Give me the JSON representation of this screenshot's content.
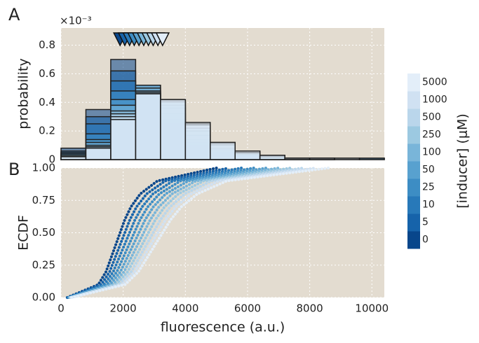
{
  "panel_labels": [
    "A",
    "B"
  ],
  "chart_data": [
    {
      "type": "histogram",
      "ylabel": "probability",
      "offset_text": "×10⁻³",
      "legend_title": "[inducer] (μM)",
      "bins": [
        0,
        800,
        1600,
        2400,
        3200,
        4000,
        4800,
        5600,
        6400,
        7200,
        8000,
        8800,
        9600,
        10400
      ],
      "xlim": [
        0,
        10400
      ],
      "xticks": [
        0,
        2000,
        4000,
        6000,
        8000,
        10000
      ],
      "ylim": [
        0,
        0.92
      ],
      "yticks": [
        0,
        0.2,
        0.4,
        0.6,
        0.8
      ],
      "grid": true,
      "medians": [
        1900,
        2052,
        2204,
        2356,
        2508,
        2660,
        2812,
        2964,
        3116,
        3268
      ],
      "series": [
        {
          "name": "0",
          "color": "#08468b",
          "values": [
            0.08,
            0.35,
            0.7,
            0.4,
            0.2,
            0.08,
            0.03,
            0.01,
            0.01,
            0,
            0,
            0,
            0.01
          ]
        },
        {
          "name": "5",
          "color": "#1663aa",
          "values": [
            0.06,
            0.3,
            0.62,
            0.45,
            0.25,
            0.1,
            0.04,
            0.02,
            0.01,
            0.01,
            0,
            0,
            0
          ]
        },
        {
          "name": "10",
          "color": "#2879b9",
          "values": [
            0.05,
            0.25,
            0.55,
            0.48,
            0.28,
            0.12,
            0.05,
            0.02,
            0.01,
            0,
            0.01,
            0,
            0
          ]
        },
        {
          "name": "25",
          "color": "#3d8dc4",
          "values": [
            0.04,
            0.18,
            0.48,
            0.52,
            0.32,
            0.14,
            0.06,
            0.03,
            0.01,
            0.01,
            0,
            0,
            0
          ]
        },
        {
          "name": "50",
          "color": "#58a1cf",
          "values": [
            0.04,
            0.14,
            0.42,
            0.52,
            0.36,
            0.17,
            0.07,
            0.03,
            0.02,
            0.01,
            0,
            0,
            0.01
          ]
        },
        {
          "name": "100",
          "color": "#79b5d9",
          "values": [
            0.03,
            0.12,
            0.38,
            0.5,
            0.38,
            0.2,
            0.08,
            0.04,
            0.02,
            0.01,
            0.01,
            0,
            0
          ]
        },
        {
          "name": "250",
          "color": "#9cc9e1",
          "values": [
            0.03,
            0.1,
            0.34,
            0.48,
            0.4,
            0.22,
            0.1,
            0.04,
            0.02,
            0.01,
            0.01,
            0,
            0
          ]
        },
        {
          "name": "500",
          "color": "#bad6eb",
          "values": [
            0.02,
            0.09,
            0.32,
            0.47,
            0.41,
            0.24,
            0.11,
            0.05,
            0.02,
            0.01,
            0.01,
            0.01,
            0
          ]
        },
        {
          "name": "1000",
          "color": "#d0e1f2",
          "values": [
            0.02,
            0.08,
            0.3,
            0.46,
            0.42,
            0.25,
            0.12,
            0.05,
            0.03,
            0.01,
            0.01,
            0,
            0
          ]
        },
        {
          "name": "5000",
          "color": "#e3eef9",
          "values": [
            0.02,
            0.08,
            0.28,
            0.46,
            0.42,
            0.26,
            0.12,
            0.06,
            0.03,
            0.01,
            0.01,
            0.01,
            0
          ]
        }
      ]
    },
    {
      "type": "line",
      "ylabel": "ECDF",
      "xlabel": "fluorescence (a.u.)",
      "xlim": [
        0,
        10400
      ],
      "xticks": [
        0,
        2000,
        4000,
        6000,
        8000,
        10000
      ],
      "ylim": [
        0,
        1
      ],
      "yticks": [
        {
          "value": 0,
          "label": "0.00"
        },
        {
          "value": 0.25,
          "label": "0.25"
        },
        {
          "value": 0.5,
          "label": "0.50"
        },
        {
          "value": 0.75,
          "label": "0.75"
        },
        {
          "value": 1,
          "label": "1.00"
        }
      ],
      "grid": true,
      "series": [
        {
          "name": "0",
          "color": "#08468b",
          "x": [
            200,
            1200,
            1450,
            1600,
            1750,
            1900,
            2050,
            2250,
            2550,
            3100,
            5000
          ],
          "values": [
            0,
            0.1,
            0.2,
            0.3,
            0.4,
            0.5,
            0.6,
            0.7,
            0.8,
            0.9,
            1
          ]
        },
        {
          "name": "5",
          "color": "#1663aa",
          "x": [
            216,
            1296,
            1566,
            1728,
            1890,
            2052,
            2214,
            2430,
            2754,
            3348,
            5400
          ],
          "values": [
            0,
            0.1,
            0.2,
            0.3,
            0.4,
            0.5,
            0.6,
            0.7,
            0.8,
            0.9,
            1
          ]
        },
        {
          "name": "10",
          "color": "#2879b9",
          "x": [
            232,
            1392,
            1682,
            1856,
            2030,
            2204,
            2378,
            2610,
            2958,
            3596,
            5800
          ],
          "values": [
            0,
            0.1,
            0.2,
            0.3,
            0.4,
            0.5,
            0.6,
            0.7,
            0.8,
            0.9,
            1
          ]
        },
        {
          "name": "25",
          "color": "#3d8dc4",
          "x": [
            248,
            1488,
            1798,
            1984,
            2170,
            2356,
            2542,
            2790,
            3162,
            3844,
            6200
          ],
          "values": [
            0,
            0.1,
            0.2,
            0.3,
            0.4,
            0.5,
            0.6,
            0.7,
            0.8,
            0.9,
            1
          ]
        },
        {
          "name": "50",
          "color": "#58a1cf",
          "x": [
            264,
            1584,
            1914,
            2112,
            2310,
            2508,
            2706,
            2970,
            3366,
            4092,
            6600
          ],
          "values": [
            0,
            0.1,
            0.2,
            0.3,
            0.4,
            0.5,
            0.6,
            0.7,
            0.8,
            0.9,
            1
          ]
        },
        {
          "name": "100",
          "color": "#79b5d9",
          "x": [
            280,
            1680,
            2030,
            2240,
            2450,
            2660,
            2870,
            3150,
            3570,
            4340,
            7000
          ],
          "values": [
            0,
            0.1,
            0.2,
            0.3,
            0.4,
            0.5,
            0.6,
            0.7,
            0.8,
            0.9,
            1
          ]
        },
        {
          "name": "250",
          "color": "#9cc9e1",
          "x": [
            296,
            1776,
            2146,
            2368,
            2590,
            2812,
            3034,
            3330,
            3774,
            4588,
            7400
          ],
          "values": [
            0,
            0.1,
            0.2,
            0.3,
            0.4,
            0.5,
            0.6,
            0.7,
            0.8,
            0.9,
            1
          ]
        },
        {
          "name": "500",
          "color": "#bad6eb",
          "x": [
            312,
            1872,
            2262,
            2496,
            2730,
            2964,
            3198,
            3510,
            3978,
            4836,
            7800
          ],
          "values": [
            0,
            0.1,
            0.2,
            0.3,
            0.4,
            0.5,
            0.6,
            0.7,
            0.8,
            0.9,
            1
          ]
        },
        {
          "name": "1000",
          "color": "#d0e1f2",
          "x": [
            328,
            1968,
            2378,
            2624,
            2870,
            3116,
            3362,
            3690,
            4182,
            5084,
            8200
          ],
          "values": [
            0,
            0.1,
            0.2,
            0.3,
            0.4,
            0.5,
            0.6,
            0.7,
            0.8,
            0.9,
            1
          ]
        },
        {
          "name": "5000",
          "color": "#e3eef9",
          "x": [
            344,
            2064,
            2494,
            2752,
            3010,
            3268,
            3526,
            3870,
            4386,
            5332,
            8600
          ],
          "values": [
            0,
            0.1,
            0.2,
            0.3,
            0.4,
            0.5,
            0.6,
            0.7,
            0.8,
            0.9,
            1
          ]
        }
      ]
    }
  ]
}
